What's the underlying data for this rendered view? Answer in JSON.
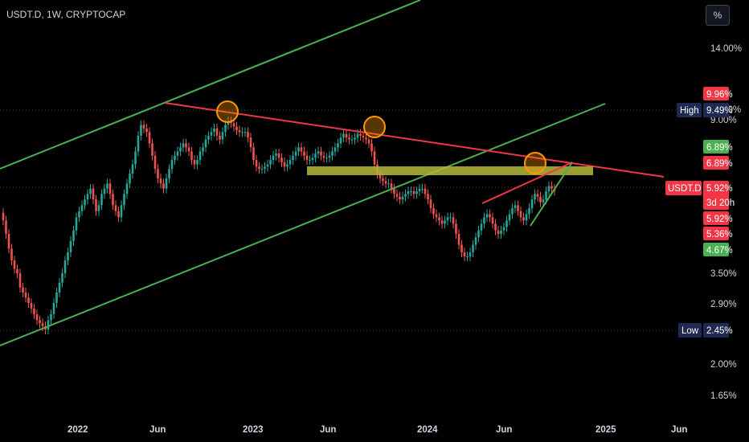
{
  "header": {
    "symbol": "USDT.D, 1W, CRYPTOCAP",
    "scale_button": "%"
  },
  "colors": {
    "up": "#26a69a",
    "down": "#ef5350",
    "channel": "#4caf50",
    "trend": "#f23645",
    "zone": "#b5b83a",
    "circle": "#ff9800",
    "axis_text": "#d1d4dc",
    "tag_red": "#f23645",
    "tag_green": "#4caf50",
    "tag_navy": "#1e2a52"
  },
  "chart_data": {
    "type": "candlestick",
    "title": "USDT.D, 1W, CRYPTOCAP",
    "y_scale": "log",
    "y_ticks": [
      "14.00%",
      "11.00%",
      "9.00%",
      "3.50%",
      "2.90%",
      "2.00%",
      "1.65%"
    ],
    "x_ticks": [
      "2022",
      "Jun",
      "2023",
      "Jun",
      "2024",
      "Jun",
      "2025",
      "Jun"
    ],
    "series": [
      {
        "name": "close",
        "values": [
          4.9,
          4.5,
          4.1,
          3.8,
          3.6,
          3.5,
          3.2,
          3.1,
          3.0,
          2.9,
          2.8,
          2.7,
          2.6,
          2.55,
          2.5,
          2.45,
          2.6,
          2.7,
          2.9,
          3.1,
          3.3,
          3.5,
          3.8,
          4.0,
          4.3,
          4.6,
          5.0,
          5.2,
          5.4,
          5.6,
          5.8,
          6.0,
          5.6,
          5.2,
          5.4,
          5.8,
          6.0,
          6.2,
          5.8,
          5.4,
          5.2,
          5.0,
          5.4,
          5.8,
          6.2,
          6.6,
          7.0,
          7.6,
          8.4,
          9.0,
          8.8,
          8.6,
          8.0,
          7.4,
          6.8,
          6.4,
          6.2,
          6.0,
          6.4,
          6.8,
          7.2,
          7.4,
          7.6,
          7.8,
          8.0,
          7.8,
          7.6,
          7.2,
          7.0,
          7.2,
          7.6,
          7.8,
          8.2,
          8.4,
          8.6,
          8.8,
          8.4,
          8.2,
          8.6,
          9.0,
          9.2,
          9.1,
          8.9,
          8.7,
          8.6,
          8.6,
          8.6,
          8.3,
          7.8,
          7.2,
          6.9,
          6.8,
          6.8,
          6.9,
          7.0,
          7.2,
          7.4,
          7.5,
          7.3,
          7.1,
          6.9,
          7.0,
          7.2,
          7.4,
          7.6,
          7.8,
          7.6,
          7.4,
          7.2,
          7.2,
          7.3,
          7.5,
          7.6,
          7.4,
          7.3,
          7.3,
          7.4,
          7.6,
          7.8,
          8.0,
          8.3,
          8.5,
          8.3,
          8.2,
          8.2,
          8.3,
          8.5,
          8.4,
          8.3,
          8.2,
          8.0,
          7.6,
          7.0,
          6.6,
          6.4,
          6.3,
          6.2,
          6.2,
          6.0,
          5.8,
          5.7,
          5.6,
          5.7,
          5.8,
          5.9,
          5.9,
          5.8,
          5.9,
          6.0,
          6.0,
          5.8,
          5.6,
          5.3,
          5.1,
          5.0,
          4.9,
          4.8,
          4.9,
          5.0,
          5.0,
          4.8,
          4.5,
          4.2,
          4.0,
          3.9,
          3.9,
          4.0,
          4.2,
          4.4,
          4.6,
          4.8,
          5.0,
          5.1,
          5.0,
          4.8,
          4.6,
          4.5,
          4.6,
          4.7,
          4.9,
          5.1,
          5.3,
          5.4,
          5.2,
          5.0,
          4.9,
          5.1,
          5.3,
          5.6,
          5.8,
          5.7,
          5.5,
          5.6,
          5.9,
          6.1,
          6.0,
          5.92
        ]
      }
    ],
    "annotations": {
      "price_tags": [
        {
          "label": "",
          "value": "9.96%",
          "color": "red"
        },
        {
          "label": "High",
          "value": "9.49%",
          "color": "navy"
        },
        {
          "label": "",
          "value": "6.89%",
          "color": "green"
        },
        {
          "label": "",
          "value": "6.89%",
          "color": "red"
        },
        {
          "label": "USDT.D",
          "value": "5.92%",
          "extra": "3d 20h",
          "color": "red"
        },
        {
          "label": "",
          "value": "5.92%",
          "color": "red"
        },
        {
          "label": "",
          "value": "5.36%",
          "color": "red"
        },
        {
          "label": "",
          "value": "4.67%",
          "color": "green"
        },
        {
          "label": "Low",
          "value": "2.45%",
          "color": "navy"
        }
      ],
      "drawings": [
        "ascending green channel",
        "descending red resistance trendline",
        "horizontal support zone",
        "three orange highlight circles",
        "rising wedge lines"
      ]
    },
    "ylim": [
      "1.65%",
      "14.00%"
    ],
    "grid": false,
    "legend": "none"
  }
}
